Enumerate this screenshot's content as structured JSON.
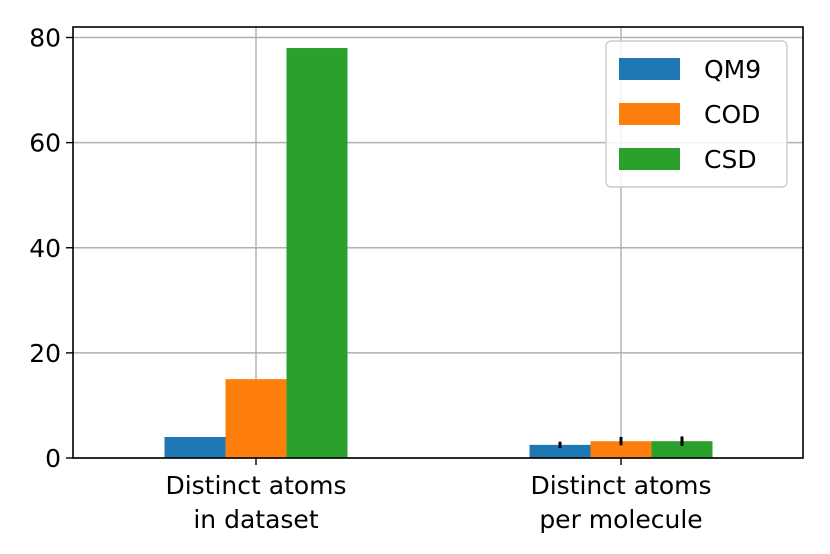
{
  "chart_data": {
    "type": "bar",
    "categories": [
      [
        "Distinct atoms",
        "in dataset"
      ],
      [
        "Distinct atoms",
        "per molecule"
      ]
    ],
    "series": [
      {
        "name": "QM9",
        "color": "#1f77b4",
        "values": [
          4,
          2.5
        ],
        "errors": [
          null,
          0.6
        ]
      },
      {
        "name": "COD",
        "color": "#ff7f0e",
        "values": [
          15,
          3.2
        ],
        "errors": [
          null,
          0.8
        ]
      },
      {
        "name": "CSD",
        "color": "#2ca02c",
        "values": [
          78,
          3.2
        ],
        "errors": [
          null,
          0.9
        ]
      }
    ],
    "yticks": [
      "0",
      "20",
      "40",
      "60",
      "80"
    ],
    "ylim": [
      0,
      82
    ],
    "grid": true,
    "legend_position": "top-right",
    "title": "",
    "xlabel": "",
    "ylabel": ""
  }
}
